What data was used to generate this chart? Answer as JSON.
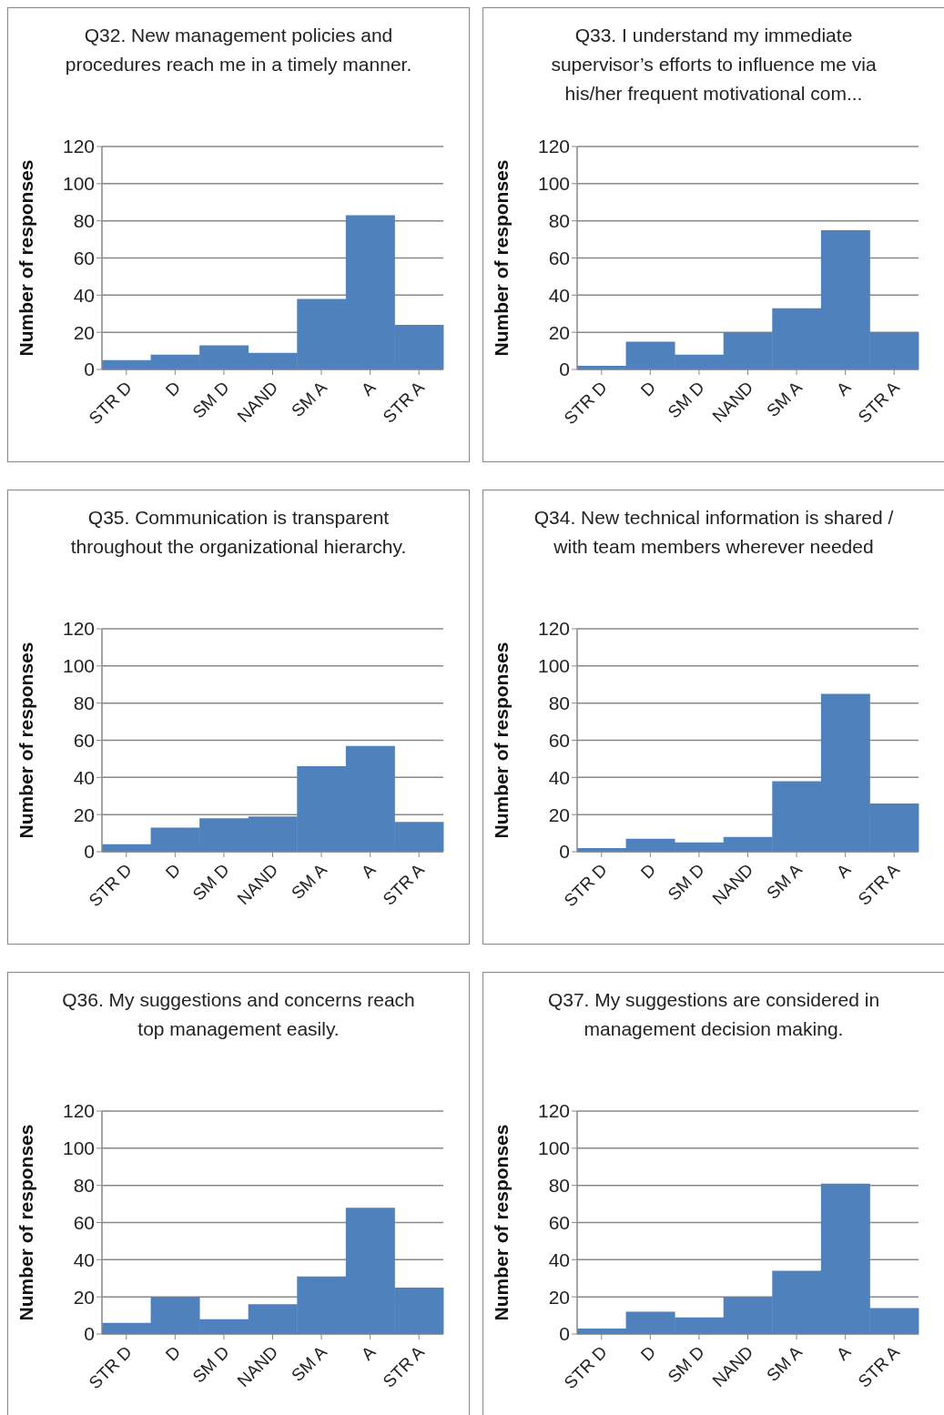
{
  "chart_data": [
    {
      "type": "bar",
      "title": "Q32. New management policies and procedures reach me in a timely manner.",
      "ylabel": "Number of responses",
      "categories": [
        "STR D",
        "D",
        "SM D",
        "NAND",
        "SM A",
        "A",
        "STR A"
      ],
      "values": [
        5,
        8,
        13,
        9,
        38,
        83,
        24
      ],
      "color": "#4f81bd",
      "ylim": [
        0,
        120
      ],
      "yticks": [
        0,
        20,
        40,
        60,
        80,
        100,
        120
      ],
      "grid": "y",
      "legend": false
    },
    {
      "type": "bar",
      "title": "Q33. I understand my immediate supervisor’s efforts to influence me via his/her frequent motivational com...",
      "ylabel": "Number of responses",
      "categories": [
        "STR D",
        "D",
        "SM D",
        "NAND",
        "SM A",
        "A",
        "STR A"
      ],
      "values": [
        2,
        15,
        8,
        20,
        33,
        75,
        20
      ],
      "color": "#4f81bd",
      "ylim": [
        0,
        120
      ],
      "yticks": [
        0,
        20,
        40,
        60,
        80,
        100,
        120
      ],
      "grid": "y",
      "legend": false
    },
    {
      "type": "bar",
      "title": "Q35. Communication is transparent throughout the organizational hierarchy.",
      "ylabel": "Number of responses",
      "categories": [
        "STR D",
        "D",
        "SM D",
        "NAND",
        "SM A",
        "A",
        "STR A"
      ],
      "values": [
        4,
        13,
        18,
        19,
        46,
        57,
        16
      ],
      "color": "#4f81bd",
      "ylim": [
        0,
        120
      ],
      "yticks": [
        0,
        20,
        40,
        60,
        80,
        100,
        120
      ],
      "grid": "y",
      "legend": false
    },
    {
      "type": "bar",
      "title": "Q34. New technical information is shared / with team members wherever needed",
      "ylabel": "Number of responses",
      "categories": [
        "STR D",
        "D",
        "SM D",
        "NAND",
        "SM A",
        "A",
        "STR A"
      ],
      "values": [
        2,
        7,
        5,
        8,
        38,
        85,
        26
      ],
      "color": "#4f81bd",
      "ylim": [
        0,
        120
      ],
      "yticks": [
        0,
        20,
        40,
        60,
        80,
        100,
        120
      ],
      "grid": "y",
      "legend": false
    },
    {
      "type": "bar",
      "title": "Q36. My suggestions and concerns reach top management easily.",
      "ylabel": "Number of responses",
      "categories": [
        "STR D",
        "D",
        "SM D",
        "NAND",
        "SM A",
        "A",
        "STR A"
      ],
      "values": [
        6,
        20,
        8,
        16,
        31,
        68,
        25
      ],
      "color": "#4f81bd",
      "ylim": [
        0,
        120
      ],
      "yticks": [
        0,
        20,
        40,
        60,
        80,
        100,
        120
      ],
      "grid": "y",
      "legend": false
    },
    {
      "type": "bar",
      "title": "Q37. My suggestions are considered in management decision making.",
      "ylabel": "Number of responses",
      "categories": [
        "STR D",
        "D",
        "SM D",
        "NAND",
        "SM A",
        "A",
        "STR A"
      ],
      "values": [
        3,
        12,
        9,
        20,
        34,
        81,
        14
      ],
      "color": "#4f81bd",
      "ylim": [
        0,
        120
      ],
      "yticks": [
        0,
        20,
        40,
        60,
        80,
        100,
        120
      ],
      "grid": "y",
      "legend": false
    }
  ]
}
